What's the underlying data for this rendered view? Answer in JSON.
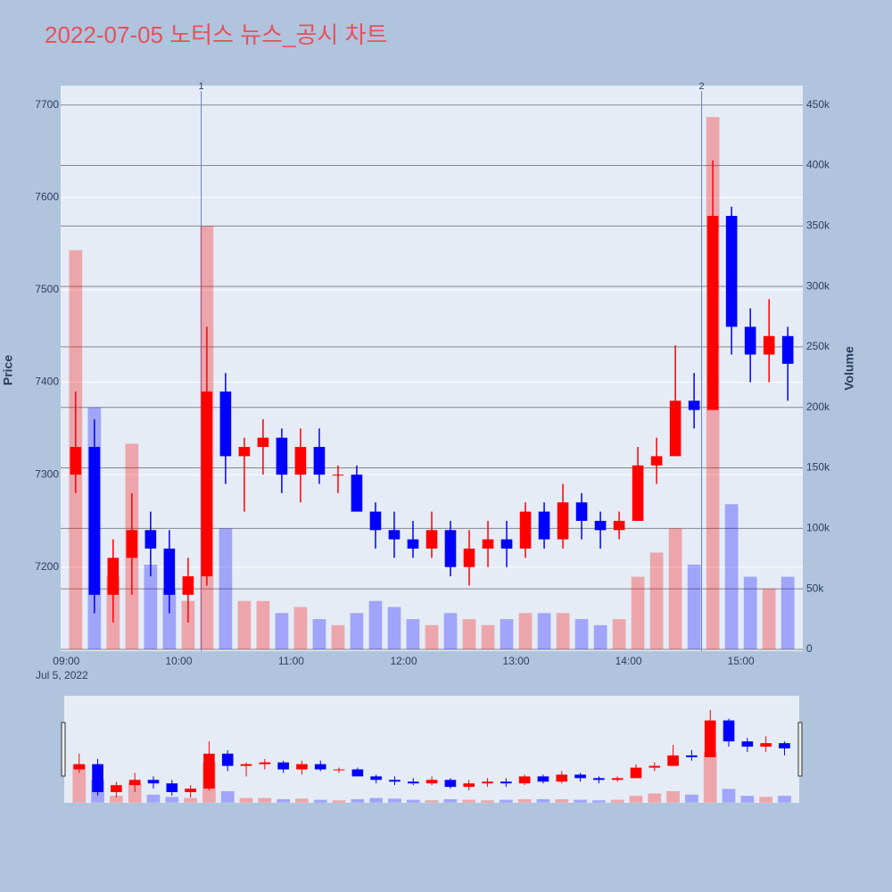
{
  "chart_data": {
    "type": "candlestick",
    "title": "2022-07-05 노터스 뉴스_공시 차트",
    "y_label": "Price",
    "y2_label": "Volume",
    "x_sublabel": "Jul 5, 2022",
    "increasing_color": "#ff0000",
    "decreasing_color": "#0000ff",
    "grid": true,
    "x": [
      "09:00",
      "09:10",
      "09:20",
      "09:30",
      "09:40",
      "09:50",
      "10:00",
      "10:10",
      "10:20",
      "10:30",
      "10:40",
      "10:50",
      "11:00",
      "11:10",
      "11:20",
      "11:30",
      "11:40",
      "11:50",
      "12:00",
      "12:10",
      "12:20",
      "12:30",
      "12:40",
      "12:50",
      "13:00",
      "13:10",
      "13:20",
      "13:30",
      "13:40",
      "13:50",
      "14:00",
      "14:10",
      "14:20",
      "14:30",
      "14:40",
      "14:50",
      "15:00",
      "15:10",
      "15:20"
    ],
    "open": [
      7300,
      7330,
      7170,
      7210,
      7240,
      7220,
      7170,
      7190,
      7390,
      7320,
      7330,
      7340,
      7300,
      7330,
      7300,
      7300,
      7260,
      7240,
      7230,
      7220,
      7240,
      7200,
      7220,
      7230,
      7220,
      7260,
      7230,
      7270,
      7250,
      7240,
      7250,
      7310,
      7320,
      7380,
      7370,
      7580,
      7460,
      7430,
      7450
    ],
    "high": [
      7390,
      7360,
      7230,
      7280,
      7260,
      7240,
      7210,
      7460,
      7410,
      7340,
      7360,
      7350,
      7350,
      7350,
      7310,
      7310,
      7270,
      7260,
      7250,
      7260,
      7250,
      7240,
      7250,
      7250,
      7270,
      7270,
      7290,
      7280,
      7260,
      7260,
      7330,
      7340,
      7440,
      7410,
      7640,
      7590,
      7480,
      7490,
      7460
    ],
    "low": [
      7280,
      7150,
      7140,
      7170,
      7190,
      7150,
      7140,
      7180,
      7290,
      7260,
      7300,
      7280,
      7270,
      7290,
      7280,
      7260,
      7220,
      7210,
      7210,
      7210,
      7190,
      7180,
      7200,
      7200,
      7210,
      7220,
      7220,
      7230,
      7220,
      7230,
      7250,
      7290,
      7320,
      7350,
      7370,
      7430,
      7400,
      7400,
      7380
    ],
    "close": [
      7330,
      7170,
      7210,
      7240,
      7220,
      7170,
      7190,
      7390,
      7320,
      7330,
      7340,
      7300,
      7330,
      7300,
      7300,
      7260,
      7240,
      7230,
      7220,
      7240,
      7200,
      7220,
      7230,
      7220,
      7260,
      7230,
      7270,
      7250,
      7240,
      7250,
      7310,
      7320,
      7380,
      7370,
      7580,
      7460,
      7430,
      7450,
      7420
    ],
    "volume": [
      330000,
      200000,
      60000,
      170000,
      70000,
      50000,
      40000,
      350000,
      100000,
      40000,
      40000,
      30000,
      35000,
      25000,
      20000,
      30000,
      40000,
      35000,
      25000,
      20000,
      30000,
      25000,
      20000,
      25000,
      30000,
      30000,
      30000,
      25000,
      20000,
      25000,
      60000,
      80000,
      100000,
      70000,
      440000,
      120000,
      60000,
      50000,
      60000
    ],
    "xlim": [
      "08:57",
      "15:33"
    ],
    "xticks": [
      "09:00",
      "10:00",
      "11:00",
      "12:00",
      "13:00",
      "14:00",
      "15:00"
    ],
    "ylim": [
      7109,
      7721
    ],
    "yticks": [
      7200,
      7300,
      7400,
      7500,
      7600,
      7700
    ],
    "y2lim": [
      -1500,
      466000
    ],
    "y2ticks": [
      0,
      {
        "value": 50000,
        "label": "50k"
      },
      {
        "value": 100000,
        "label": "100k"
      },
      {
        "value": 150000,
        "label": "150k"
      },
      {
        "value": 200000,
        "label": "200k"
      },
      {
        "value": 250000,
        "label": "250k"
      },
      {
        "value": 300000,
        "label": "300k"
      },
      {
        "value": 350000,
        "label": "350k"
      },
      {
        "value": 400000,
        "label": "400k"
      },
      {
        "value": 450000,
        "label": "450k"
      }
    ],
    "annotations": [
      {
        "x": "10:12",
        "text": "1"
      },
      {
        "x": "14:39",
        "text": "2"
      }
    ]
  }
}
